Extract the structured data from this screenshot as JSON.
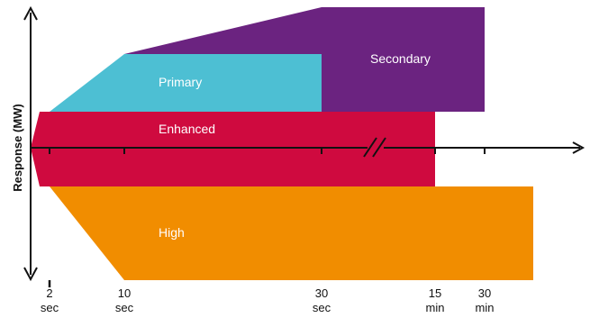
{
  "diagram": {
    "y_axis_label": "Response (MW)",
    "regions": [
      {
        "id": "secondary",
        "label": "Secondary",
        "color": "#6B2380"
      },
      {
        "id": "primary",
        "label": "Primary",
        "color": "#4DBFD3"
      },
      {
        "id": "enhanced",
        "label": "Enhanced",
        "color": "#CF0A3F"
      },
      {
        "id": "high",
        "label": "High",
        "color": "#F18D00"
      }
    ],
    "ticks": [
      {
        "value": "2",
        "unit": "sec"
      },
      {
        "value": "10",
        "unit": "sec"
      },
      {
        "value": "30",
        "unit": "sec"
      },
      {
        "value": "15",
        "unit": "min"
      },
      {
        "value": "30",
        "unit": "min"
      }
    ],
    "axis_color": "#111111",
    "break_symbol": "axis-break"
  }
}
